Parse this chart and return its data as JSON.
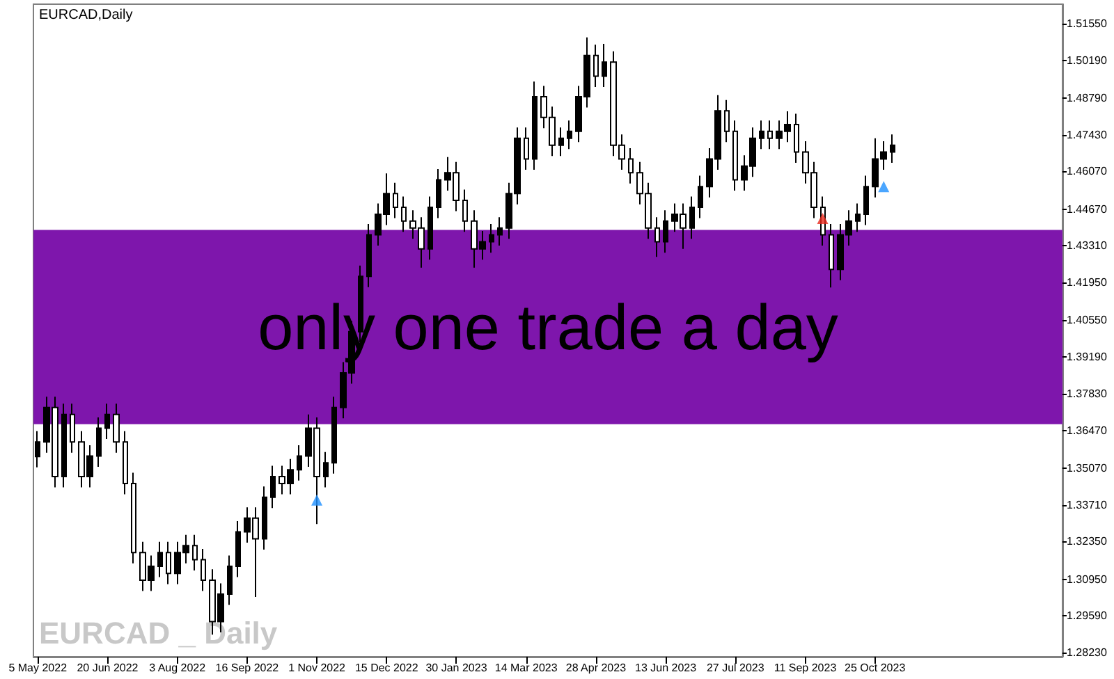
{
  "chart_data": {
    "type": "candlestick",
    "title": "EURCAD,Daily",
    "annotations": [
      "EURCAD _ Daily"
    ],
    "categories": [
      "5 May 2022",
      null,
      null,
      null,
      null,
      null,
      null,
      null,
      "20 Jun 2022",
      null,
      null,
      null,
      null,
      null,
      null,
      null,
      "3 Aug 2022",
      null,
      null,
      null,
      null,
      null,
      null,
      null,
      "16 Sep 2022",
      null,
      null,
      null,
      null,
      null,
      null,
      null,
      "1 Nov 2022",
      null,
      null,
      null,
      null,
      null,
      null,
      null,
      "15 Dec 2022",
      null,
      null,
      null,
      null,
      null,
      null,
      null,
      "30 Jan 2023",
      null,
      null,
      null,
      null,
      null,
      null,
      null,
      "14 Mar 2023",
      null,
      null,
      null,
      null,
      null,
      null,
      null,
      "28 Apr 2023",
      null,
      null,
      null,
      null,
      null,
      null,
      null,
      "13 Jun 2023",
      null,
      null,
      null,
      null,
      null,
      null,
      null,
      "27 Jul 2023",
      null,
      null,
      null,
      null,
      null,
      null,
      null,
      "11 Sep 2023",
      null,
      null,
      null,
      null,
      null,
      null,
      null,
      "25 Oct 2023",
      null,
      null,
      null,
      null,
      null,
      null,
      null,
      null,
      null,
      null,
      null,
      null,
      null,
      null,
      null,
      null,
      null,
      null,
      null,
      null,
      null
    ],
    "series": [
      {
        "color": "#000000",
        "ohlc": [
          [
            1.355,
            1.3644,
            1.351,
            1.3604
          ],
          [
            1.3604,
            1.3772,
            1.3564,
            1.3732
          ],
          [
            1.3732,
            1.3772,
            1.3436,
            1.3476
          ],
          [
            1.3476,
            1.3746,
            1.3436,
            1.3706
          ],
          [
            1.3706,
            1.3746,
            1.3564,
            1.3604
          ],
          [
            1.3604,
            1.3644,
            1.3436,
            1.3476
          ],
          [
            1.3476,
            1.3592,
            1.3436,
            1.3552
          ],
          [
            1.3552,
            1.3695,
            1.3512,
            1.3655
          ],
          [
            1.3655,
            1.3746,
            1.3615,
            1.3706
          ],
          [
            1.3706,
            1.3746,
            1.3564,
            1.3604
          ],
          [
            1.3604,
            1.3644,
            1.341,
            1.345
          ],
          [
            1.345,
            1.349,
            1.3154,
            1.3194
          ],
          [
            1.3194,
            1.3234,
            1.3052,
            1.3092
          ],
          [
            1.3092,
            1.3183,
            1.3052,
            1.3143
          ],
          [
            1.3143,
            1.3234,
            1.3103,
            1.3194
          ],
          [
            1.3194,
            1.3234,
            1.3077,
            1.3117
          ],
          [
            1.3117,
            1.3234,
            1.3077,
            1.3194
          ],
          [
            1.3194,
            1.326,
            1.3154,
            1.322
          ],
          [
            1.322,
            1.326,
            1.3128,
            1.3168
          ],
          [
            1.3168,
            1.3208,
            1.3052,
            1.3092
          ],
          [
            1.3092,
            1.3132,
            1.289,
            1.2938
          ],
          [
            1.2938,
            1.308,
            1.2898,
            1.304
          ],
          [
            1.304,
            1.3183,
            1.3,
            1.3143
          ],
          [
            1.3143,
            1.3311,
            1.3103,
            1.3271
          ],
          [
            1.3271,
            1.3362,
            1.3231,
            1.3322
          ],
          [
            1.3322,
            1.3362,
            1.303,
            1.3245
          ],
          [
            1.3245,
            1.3439,
            1.3205,
            1.3399
          ],
          [
            1.3399,
            1.3516,
            1.3359,
            1.3476
          ],
          [
            1.3476,
            1.3516,
            1.341,
            1.345
          ],
          [
            1.345,
            1.3541,
            1.341,
            1.3501
          ],
          [
            1.3501,
            1.3592,
            1.3461,
            1.3552
          ],
          [
            1.3552,
            1.3706,
            1.3512,
            1.3655
          ],
          [
            1.3655,
            1.3695,
            1.33,
            1.3476
          ],
          [
            1.3476,
            1.3567,
            1.3436,
            1.3527
          ],
          [
            1.3527,
            1.3772,
            1.3487,
            1.3732
          ],
          [
            1.3732,
            1.39,
            1.3692,
            1.386
          ],
          [
            1.386,
            1.4053,
            1.382,
            1.4013
          ],
          [
            1.4013,
            1.4258,
            1.3973,
            1.4218
          ],
          [
            1.4218,
            1.4412,
            1.4178,
            1.4372
          ],
          [
            1.4372,
            1.4488,
            1.4332,
            1.4448
          ],
          [
            1.4448,
            1.46,
            1.4408,
            1.4525
          ],
          [
            1.4525,
            1.4565,
            1.4434,
            1.4474
          ],
          [
            1.4474,
            1.4514,
            1.4383,
            1.4423
          ],
          [
            1.4423,
            1.4463,
            1.4357,
            1.4397
          ],
          [
            1.4397,
            1.4437,
            1.425,
            1.432
          ],
          [
            1.432,
            1.4514,
            1.428,
            1.4474
          ],
          [
            1.4474,
            1.4616,
            1.4434,
            1.4576
          ],
          [
            1.4576,
            1.466,
            1.4536,
            1.4602
          ],
          [
            1.4602,
            1.4642,
            1.446,
            1.45
          ],
          [
            1.45,
            1.454,
            1.4383,
            1.4423
          ],
          [
            1.4423,
            1.4463,
            1.425,
            1.432
          ],
          [
            1.432,
            1.4386,
            1.428,
            1.4346
          ],
          [
            1.4346,
            1.4412,
            1.4306,
            1.4372
          ],
          [
            1.4372,
            1.4437,
            1.4332,
            1.4397
          ],
          [
            1.4397,
            1.4565,
            1.4357,
            1.4525
          ],
          [
            1.4525,
            1.477,
            1.4485,
            1.473
          ],
          [
            1.473,
            1.477,
            1.4613,
            1.4653
          ],
          [
            1.4653,
            1.494,
            1.4613,
            1.4884
          ],
          [
            1.4884,
            1.4924,
            1.4767,
            1.4807
          ],
          [
            1.4807,
            1.4847,
            1.4664,
            1.4704
          ],
          [
            1.4704,
            1.477,
            1.4664,
            1.473
          ],
          [
            1.473,
            1.4796,
            1.469,
            1.4756
          ],
          [
            1.4756,
            1.4924,
            1.4716,
            1.4884
          ],
          [
            1.4884,
            1.5104,
            1.4844,
            1.5037
          ],
          [
            1.5037,
            1.5077,
            1.492,
            1.496
          ],
          [
            1.496,
            1.508,
            1.492,
            1.5012
          ],
          [
            1.5012,
            1.5052,
            1.4664,
            1.4704
          ],
          [
            1.4704,
            1.4744,
            1.4613,
            1.4653
          ],
          [
            1.4653,
            1.4693,
            1.4562,
            1.4602
          ],
          [
            1.4602,
            1.4642,
            1.4485,
            1.4525
          ],
          [
            1.4525,
            1.4565,
            1.4357,
            1.4397
          ],
          [
            1.4397,
            1.4437,
            1.429,
            1.4346
          ],
          [
            1.4346,
            1.4463,
            1.4306,
            1.4423
          ],
          [
            1.4423,
            1.4488,
            1.4383,
            1.4448
          ],
          [
            1.4448,
            1.4488,
            1.432,
            1.4397
          ],
          [
            1.4397,
            1.4514,
            1.4357,
            1.4474
          ],
          [
            1.4474,
            1.4591,
            1.4434,
            1.4551
          ],
          [
            1.4551,
            1.4693,
            1.4511,
            1.4653
          ],
          [
            1.4653,
            1.489,
            1.4613,
            1.4832
          ],
          [
            1.4832,
            1.4872,
            1.4716,
            1.4756
          ],
          [
            1.4756,
            1.4796,
            1.4536,
            1.4576
          ],
          [
            1.4576,
            1.4667,
            1.4536,
            1.4627
          ],
          [
            1.4627,
            1.477,
            1.4587,
            1.473
          ],
          [
            1.473,
            1.4796,
            1.469,
            1.4756
          ],
          [
            1.4756,
            1.4796,
            1.469,
            1.473
          ],
          [
            1.473,
            1.4796,
            1.469,
            1.4756
          ],
          [
            1.4756,
            1.483,
            1.4716,
            1.4781
          ],
          [
            1.4781,
            1.4821,
            1.4639,
            1.4679
          ],
          [
            1.4679,
            1.4719,
            1.4562,
            1.4602
          ],
          [
            1.4602,
            1.4642,
            1.4434,
            1.4474
          ],
          [
            1.4474,
            1.4514,
            1.4332,
            1.4372
          ],
          [
            1.4372,
            1.4412,
            1.4177,
            1.4244
          ],
          [
            1.4244,
            1.4412,
            1.4204,
            1.4372
          ],
          [
            1.4372,
            1.4463,
            1.4332,
            1.4423
          ],
          [
            1.4423,
            1.4488,
            1.4383,
            1.4448
          ],
          [
            1.4448,
            1.4591,
            1.4408,
            1.4551
          ],
          [
            1.4551,
            1.473,
            1.4511,
            1.4653
          ],
          [
            1.4653,
            1.4719,
            1.4613,
            1.4679
          ],
          [
            1.4679,
            1.4744,
            1.4639,
            1.4704
          ],
          null,
          null,
          null,
          null,
          null,
          null,
          null,
          null,
          null,
          null,
          null,
          null,
          null,
          null,
          null,
          null,
          null,
          null,
          null
        ]
      },
      {
        "type": "scatter",
        "color": "#1e90ff",
        "values": [
          null,
          null,
          null,
          null,
          null,
          null,
          null,
          null,
          null,
          null,
          null,
          null,
          null,
          null,
          null,
          null,
          null,
          null,
          null,
          null,
          null,
          null,
          null,
          null,
          null,
          null,
          null,
          null,
          null,
          null,
          null,
          null,
          1.3389,
          null,
          null,
          null,
          null,
          null,
          null,
          null,
          null,
          null,
          null,
          null,
          null,
          null,
          null,
          null,
          null,
          null,
          null,
          null,
          null,
          null,
          null,
          null,
          null,
          null,
          null,
          null,
          null,
          null,
          null,
          null,
          null,
          null,
          null,
          null,
          null,
          null,
          null,
          null,
          null,
          null,
          null,
          null,
          null,
          null,
          null,
          null,
          null,
          null,
          null,
          null,
          null,
          null,
          null,
          null,
          null,
          null,
          null,
          null,
          null,
          null,
          null,
          null,
          null,
          1.4551,
          null,
          null,
          null,
          null,
          null,
          null,
          null,
          null,
          null,
          null,
          null,
          null,
          null,
          null,
          null,
          null,
          null,
          null,
          null,
          null
        ]
      },
      {
        "type": "scatter",
        "color": "#e8281c",
        "values": [
          null,
          null,
          null,
          null,
          null,
          null,
          null,
          null,
          null,
          null,
          null,
          null,
          null,
          null,
          null,
          null,
          null,
          null,
          null,
          null,
          null,
          null,
          null,
          null,
          null,
          null,
          null,
          null,
          null,
          null,
          null,
          null,
          null,
          null,
          null,
          null,
          null,
          null,
          null,
          null,
          null,
          null,
          null,
          null,
          null,
          null,
          null,
          null,
          null,
          null,
          null,
          null,
          null,
          null,
          null,
          null,
          null,
          null,
          null,
          null,
          null,
          null,
          null,
          null,
          null,
          null,
          null,
          null,
          null,
          null,
          null,
          null,
          null,
          null,
          null,
          null,
          null,
          null,
          null,
          null,
          null,
          null,
          null,
          null,
          null,
          null,
          null,
          null,
          null,
          null,
          1.4433,
          null,
          null,
          null,
          null,
          null,
          null,
          null,
          null,
          null,
          null,
          null,
          null,
          null,
          null,
          null,
          null,
          null,
          null,
          null,
          null,
          null,
          null,
          null,
          null,
          null,
          null,
          null
        ]
      }
    ],
    "marker": "triangle",
    "bands": [
      {
        "axis": "y",
        "from": 1.367,
        "to": 1.439,
        "label": "only one trade a day",
        "color": "#7e16ac"
      }
    ],
    "ylim": [
      1.2808,
      1.5227
    ],
    "yticks": [
      {
        "value": 1.5155,
        "label": "1.51550"
      },
      {
        "value": 1.5019,
        "label": "1.50190"
      },
      {
        "value": 1.4879,
        "label": "1.48790"
      },
      {
        "value": 1.4743,
        "label": "1.47430"
      },
      {
        "value": 1.4607,
        "label": "1.46070"
      },
      {
        "value": 1.4467,
        "label": "1.44670"
      },
      {
        "value": 1.4331,
        "label": "1.43310"
      },
      {
        "value": 1.4195,
        "label": "1.41950"
      },
      {
        "value": 1.4055,
        "label": "1.40550"
      },
      {
        "value": 1.3919,
        "label": "1.39190"
      },
      {
        "value": 1.3783,
        "label": "1.37830"
      },
      {
        "value": 1.3647,
        "label": "1.36470"
      },
      {
        "value": 1.3507,
        "label": "1.35070"
      },
      {
        "value": 1.3371,
        "label": "1.33710"
      },
      {
        "value": 1.3235,
        "label": "1.32350"
      },
      {
        "value": 1.3095,
        "label": "1.30950"
      },
      {
        "value": 1.2959,
        "label": "1.29590"
      },
      {
        "value": 1.2823,
        "label": "1.28230"
      }
    ],
    "grid": false
  }
}
